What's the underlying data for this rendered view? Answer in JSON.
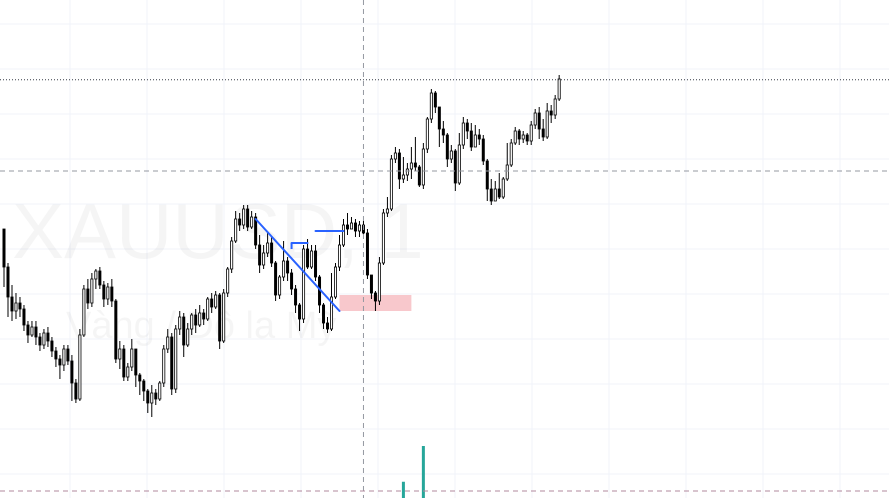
{
  "watermark": {
    "symbol": "XAUUSD, 1",
    "subtitle": "Vàng / Đô la Mỹ"
  },
  "colors": {
    "candle": "#000000",
    "trend_line": "#2962ff",
    "zone_fill": "#f8c8cc",
    "volume": "#26a69a",
    "grid": "#f0f3fa",
    "crosshair": "#9598a1",
    "price_line": "#363a45"
  },
  "chart_data": {
    "type": "candlestick",
    "y_range": [
      0,
      100
    ],
    "x_range": [
      0,
      168
    ],
    "grid": true,
    "crosshair": {
      "bar": 90,
      "price": 68.5
    },
    "price_line": 91.3,
    "candles": [
      [
        54,
        44.5,
        46,
        39.5
      ],
      [
        44.5,
        37,
        45.5,
        32
      ],
      [
        37,
        33.5,
        40,
        31
      ],
      [
        33.5,
        35.5,
        38,
        31.5
      ],
      [
        35.5,
        34,
        37,
        32
      ],
      [
        34,
        30,
        35,
        28.5
      ],
      [
        30,
        27.5,
        31,
        25.5
      ],
      [
        27.5,
        29.5,
        31,
        27
      ],
      [
        29.5,
        27,
        31,
        25
      ],
      [
        27,
        25,
        28,
        23.5
      ],
      [
        25,
        28,
        29,
        24
      ],
      [
        28,
        26,
        29.5,
        24.5
      ],
      [
        26,
        23.5,
        27,
        22
      ],
      [
        23.5,
        21.5,
        24.5,
        19.5
      ],
      [
        21.5,
        20,
        22.5,
        16.5
      ],
      [
        20,
        24,
        25,
        18.5
      ],
      [
        24,
        21,
        25,
        20
      ],
      [
        21,
        15.5,
        22.5,
        11
      ],
      [
        15.5,
        11.5,
        16.5,
        10.5
      ],
      [
        11.5,
        27.5,
        29,
        11
      ],
      [
        27.5,
        39,
        40,
        27
      ],
      [
        39,
        35.5,
        41.5,
        34
      ],
      [
        35.5,
        41.5,
        43,
        34.5
      ],
      [
        41.5,
        43.5,
        44,
        39
      ],
      [
        43.5,
        40,
        44.5,
        39
      ],
      [
        40,
        36.5,
        41,
        34.5
      ],
      [
        36.5,
        39.5,
        40.5,
        35
      ],
      [
        39.5,
        36,
        41.5,
        34.5
      ],
      [
        36,
        21.5,
        36.5,
        20.5
      ],
      [
        21.5,
        24,
        26,
        19
      ],
      [
        24,
        17,
        25,
        16
      ],
      [
        17,
        19.5,
        20.5,
        16
      ],
      [
        19.5,
        24,
        26.5,
        18.5
      ],
      [
        24,
        17.5,
        24,
        14.5
      ],
      [
        17.5,
        16,
        18,
        12.5
      ],
      [
        16,
        13.5,
        16.5,
        11
      ],
      [
        13.5,
        10.5,
        14,
        8
      ],
      [
        10.5,
        13,
        15,
        7
      ],
      [
        13,
        11.5,
        14,
        10
      ],
      [
        11.5,
        15.5,
        16,
        11
      ],
      [
        15.5,
        24,
        25,
        14.5
      ],
      [
        24,
        27,
        29,
        23
      ],
      [
        27,
        14,
        28,
        12.5
      ],
      [
        14,
        29,
        30,
        13
      ],
      [
        29,
        32,
        33.5,
        27.5
      ],
      [
        32,
        25,
        33,
        22
      ],
      [
        25,
        29,
        30.5,
        24.5
      ],
      [
        29,
        32.5,
        33,
        27.5
      ],
      [
        32.5,
        30,
        34,
        28
      ],
      [
        30,
        33,
        35,
        29.5
      ],
      [
        33,
        31.5,
        34,
        30
      ],
      [
        31.5,
        36.5,
        37,
        31
      ],
      [
        36.5,
        34.5,
        38,
        33
      ],
      [
        34.5,
        37.5,
        38.5,
        34
      ],
      [
        37.5,
        26,
        38,
        24
      ],
      [
        26,
        38,
        39,
        25.5
      ],
      [
        38,
        44,
        44.5,
        37
      ],
      [
        44,
        51,
        52,
        43
      ],
      [
        51,
        56.5,
        58.5,
        50.5
      ],
      [
        56.5,
        55,
        58,
        53.5
      ],
      [
        55,
        59,
        60,
        54
      ],
      [
        59,
        54.5,
        60,
        53.5
      ],
      [
        54.5,
        57,
        58.5,
        54
      ],
      [
        57,
        50,
        58,
        49
      ],
      [
        50,
        45,
        52.5,
        43
      ],
      [
        45,
        48,
        50,
        44
      ],
      [
        48,
        50.5,
        53,
        47
      ],
      [
        50.5,
        45.5,
        52,
        44.5
      ],
      [
        45.5,
        37.5,
        46,
        36
      ],
      [
        37.5,
        42,
        42.5,
        36.5
      ],
      [
        42,
        46,
        51,
        41
      ],
      [
        46,
        43,
        47,
        41
      ],
      [
        43,
        39,
        44,
        37.5
      ],
      [
        39,
        35,
        40,
        33
      ],
      [
        35,
        31.5,
        35.5,
        28.5
      ],
      [
        31.5,
        49,
        50,
        30.5
      ],
      [
        49,
        44.5,
        51.5,
        44
      ],
      [
        44.5,
        48.5,
        50,
        44
      ],
      [
        48.5,
        42,
        50,
        41
      ],
      [
        42,
        35,
        42.5,
        33
      ],
      [
        35,
        30.5,
        35.5,
        29
      ],
      [
        30.5,
        29,
        32,
        28
      ],
      [
        29,
        37,
        43,
        28.5
      ],
      [
        37,
        44.5,
        45.5,
        36.5
      ],
      [
        44.5,
        50,
        52.5,
        43.5
      ],
      [
        50,
        55,
        56.5,
        49.5
      ],
      [
        55,
        54,
        58,
        52.5
      ],
      [
        54,
        55.5,
        57,
        54
      ],
      [
        55.5,
        53.5,
        56.5,
        52
      ],
      [
        53.5,
        55,
        56,
        52
      ],
      [
        55,
        53,
        56,
        52.5
      ],
      [
        53,
        42.5,
        54,
        41.5
      ],
      [
        42.5,
        38,
        42.5,
        36.5
      ],
      [
        38,
        36,
        38.5,
        33.5
      ],
      [
        36,
        45.5,
        47,
        35
      ],
      [
        45.5,
        58,
        59,
        45
      ],
      [
        58,
        59,
        62,
        57
      ],
      [
        59,
        71.5,
        72.5,
        58.5
      ],
      [
        71.5,
        73,
        74.5,
        70.5
      ],
      [
        73,
        66.5,
        74,
        64
      ],
      [
        66.5,
        67.5,
        72,
        65.5
      ],
      [
        67.5,
        69,
        70.5,
        66
      ],
      [
        69,
        70.5,
        74.5,
        66.5
      ],
      [
        70.5,
        69.5,
        77,
        68.5
      ],
      [
        69.5,
        65,
        70,
        64.5
      ],
      [
        65,
        74,
        75.5,
        64
      ],
      [
        74,
        81.5,
        82,
        73
      ],
      [
        81.5,
        88,
        89,
        80.5
      ],
      [
        88,
        84.5,
        88.5,
        83
      ],
      [
        84.5,
        79,
        84.5,
        74.5
      ],
      [
        79,
        77.5,
        81,
        75.5
      ],
      [
        77.5,
        71.5,
        78,
        69.5
      ],
      [
        71.5,
        73.5,
        75,
        70.5
      ],
      [
        73.5,
        65.5,
        74,
        63.5
      ],
      [
        65.5,
        75,
        78,
        65
      ],
      [
        75,
        80.5,
        82,
        74
      ],
      [
        80.5,
        78.5,
        81.5,
        76.5
      ],
      [
        78.5,
        74.5,
        80.5,
        73.5
      ],
      [
        74.5,
        77.5,
        80,
        76
      ],
      [
        77.5,
        76.5,
        79,
        75
      ],
      [
        76.5,
        71,
        77.5,
        70
      ],
      [
        71,
        64,
        71.5,
        61
      ],
      [
        64,
        61,
        66.5,
        60
      ],
      [
        61,
        64,
        66,
        61
      ],
      [
        64,
        62,
        68,
        61.5
      ],
      [
        62,
        66.5,
        67,
        61.5
      ],
      [
        66.5,
        70,
        75.5,
        66
      ],
      [
        70,
        75.5,
        76.5,
        69.5
      ],
      [
        75.5,
        78.5,
        79.5,
        75
      ],
      [
        78.5,
        76.5,
        79,
        75
      ],
      [
        76.5,
        77.5,
        78.5,
        75.5
      ],
      [
        77.5,
        76,
        78,
        75
      ],
      [
        76,
        80,
        81,
        75
      ],
      [
        80,
        83,
        84,
        79
      ],
      [
        83,
        79,
        84.5,
        76.5
      ],
      [
        79,
        77,
        81.5,
        76
      ],
      [
        77,
        83.5,
        85.5,
        76.5
      ],
      [
        83.5,
        82.5,
        85,
        80.5
      ],
      [
        82.5,
        86.5,
        87.5,
        81.5
      ],
      [
        86.5,
        91.5,
        92.5,
        86
      ]
    ],
    "volume_bars": [
      {
        "bar": 100,
        "height": 2.5
      },
      {
        "bar": 105,
        "height": 8
      }
    ],
    "trend_lines": [
      {
        "from": [
          63,
          56.5
        ],
        "to": [
          84,
          33.5
        ]
      },
      {
        "from": [
          72,
          50.5
        ],
        "to": [
          76,
          50.5
        ]
      },
      {
        "from": [
          78,
          53.5
        ],
        "to": [
          85,
          53.5
        ]
      }
    ],
    "zones": [
      {
        "x0": 84,
        "x1": 102,
        "y0": 33.5,
        "y1": 37.5
      }
    ]
  }
}
